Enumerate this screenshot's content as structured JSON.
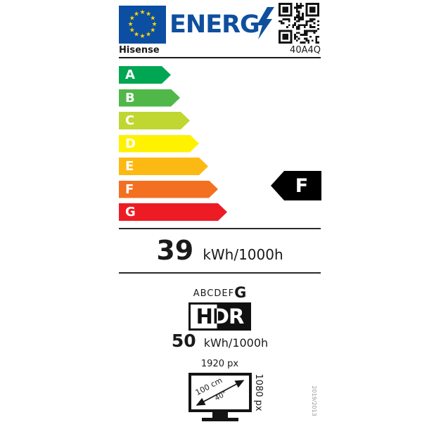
{
  "header": {
    "logo_text": "ENERG",
    "eu_flag": {
      "field_color": "#0b4ea2",
      "star_color": "#ffd500"
    }
  },
  "product": {
    "brand": "Hisense",
    "model": "40A4Q"
  },
  "scale": {
    "rating": "F",
    "classes": [
      {
        "label": "A",
        "color": "#00a651",
        "width": 74
      },
      {
        "label": "B",
        "color": "#50b848",
        "width": 87
      },
      {
        "label": "C",
        "color": "#bfd730",
        "width": 101
      },
      {
        "label": "D",
        "color": "#fff200",
        "width": 114
      },
      {
        "label": "E",
        "color": "#fdb913",
        "width": 127
      },
      {
        "label": "F",
        "color": "#f37021",
        "width": 141
      },
      {
        "label": "G",
        "color": "#ed1c24",
        "width": 154
      }
    ]
  },
  "energy_sdr": {
    "value": "39",
    "unit": "kWh/1000h"
  },
  "hdr": {
    "scale_prefix": "ABCDEF",
    "rating": "G",
    "logo": "HDR",
    "value": "50",
    "unit": "kWh/1000h"
  },
  "display": {
    "width": "1920 px",
    "height": "1080 px",
    "diagonal_cm": "100 cm",
    "diagonal_inch": "40\""
  },
  "regulation": "2019/2013"
}
